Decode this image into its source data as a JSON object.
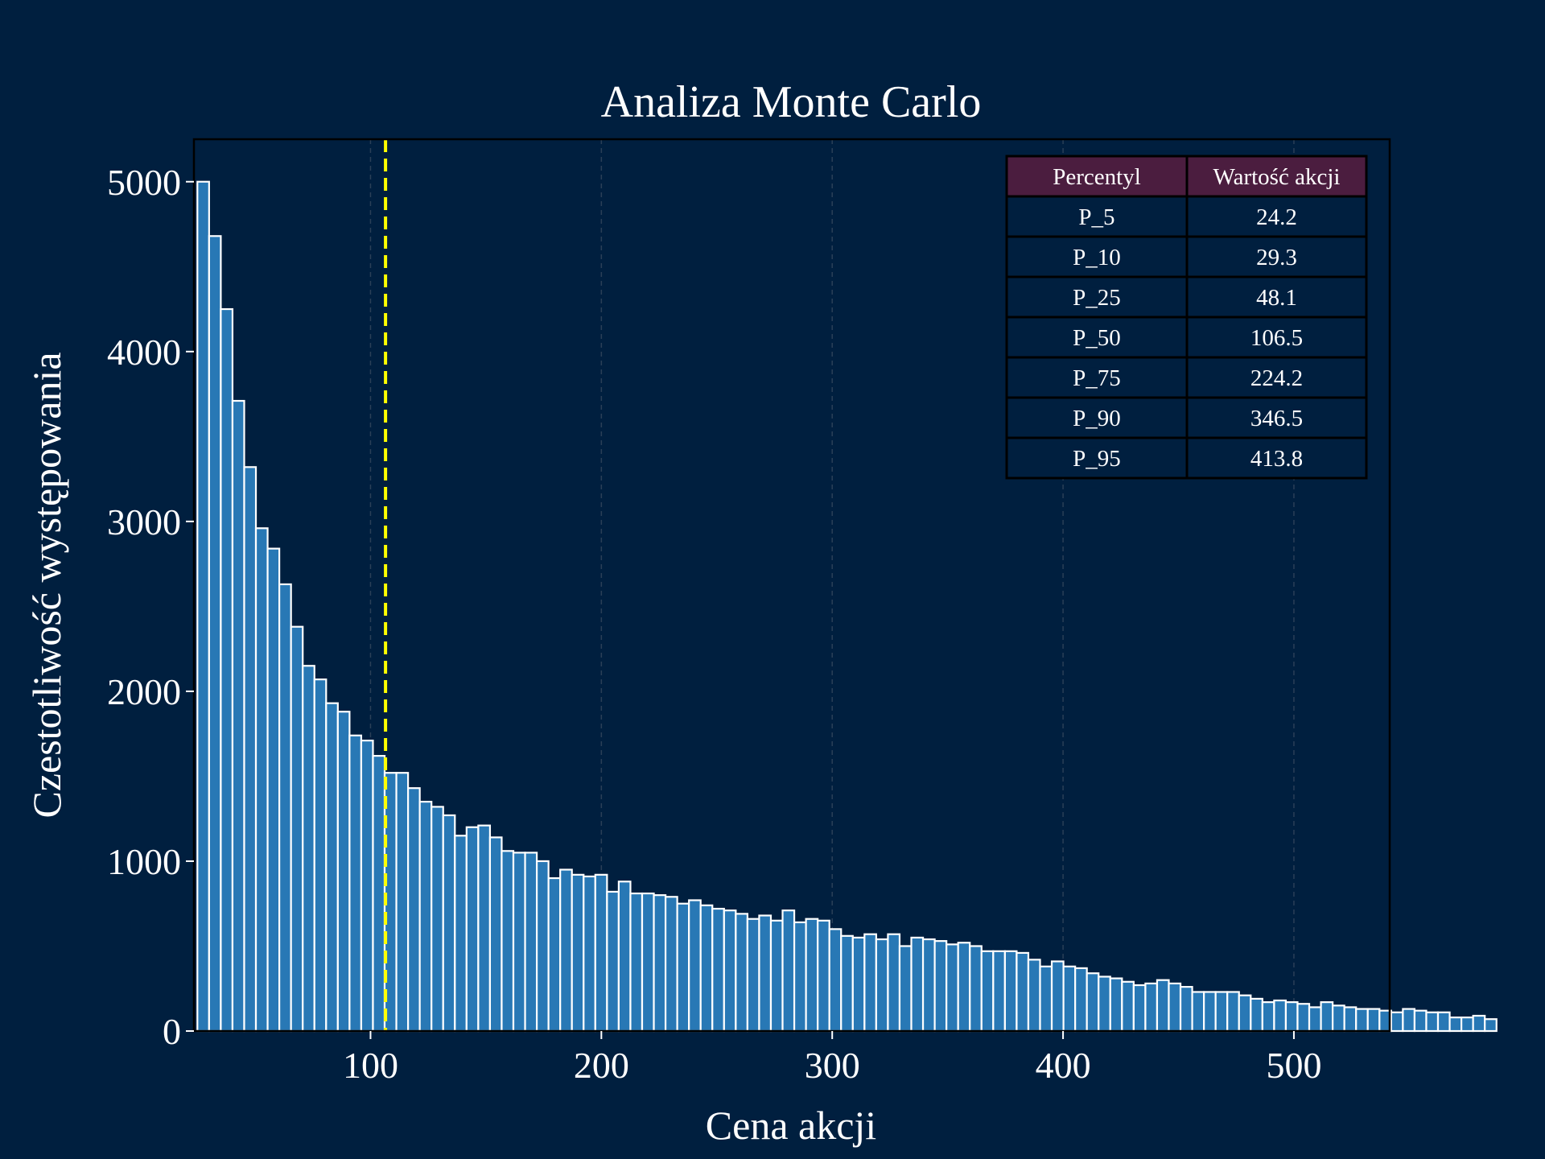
{
  "chart_data": {
    "type": "bar",
    "title": "Analiza Monte Carlo",
    "xlabel": "Cena akcji",
    "ylabel": "Czestotliwość występowania",
    "xlim": [
      23.5,
      541.5
    ],
    "ylim": [
      0,
      5250
    ],
    "xticks": [
      100,
      200,
      300,
      400,
      500
    ],
    "yticks": [
      0,
      1000,
      2000,
      3000,
      4000,
      5000
    ],
    "grid": "vertical dashed",
    "bin_start": 25.0,
    "bin_width": 5.07,
    "values": [
      5000,
      4680,
      4250,
      3710,
      3320,
      2960,
      2840,
      2630,
      2380,
      2150,
      2070,
      1930,
      1880,
      1740,
      1710,
      1620,
      1520,
      1520,
      1430,
      1350,
      1320,
      1270,
      1150,
      1200,
      1210,
      1140,
      1060,
      1050,
      1050,
      1000,
      900,
      950,
      920,
      910,
      920,
      820,
      880,
      810,
      810,
      800,
      790,
      750,
      770,
      740,
      720,
      710,
      690,
      660,
      680,
      650,
      710,
      640,
      660,
      650,
      600,
      560,
      550,
      570,
      540,
      570,
      500,
      550,
      540,
      530,
      510,
      520,
      500,
      470,
      470,
      470,
      460,
      420,
      380,
      410,
      380,
      370,
      340,
      320,
      310,
      290,
      270,
      280,
      300,
      280,
      260,
      230,
      230,
      230,
      230,
      210,
      190,
      170,
      180,
      170,
      160,
      140,
      170,
      150,
      140,
      130,
      130,
      120,
      110,
      130,
      120,
      110,
      110,
      80,
      80,
      90,
      70
    ],
    "median_line": {
      "value": 106.5,
      "color": "#ffff00"
    },
    "colors": {
      "bar_fill": "#2878b5",
      "bar_edge": "#ffffff",
      "background": "#001f3f",
      "table_header": "#4b1d3f"
    },
    "table": {
      "headers": [
        "Percentyl",
        "Wartość akcji"
      ],
      "rows": [
        [
          "P_5",
          "24.2"
        ],
        [
          "P_10",
          "29.3"
        ],
        [
          "P_25",
          "48.1"
        ],
        [
          "P_50",
          "106.5"
        ],
        [
          "P_75",
          "224.2"
        ],
        [
          "P_90",
          "346.5"
        ],
        [
          "P_95",
          "413.8"
        ]
      ]
    }
  }
}
